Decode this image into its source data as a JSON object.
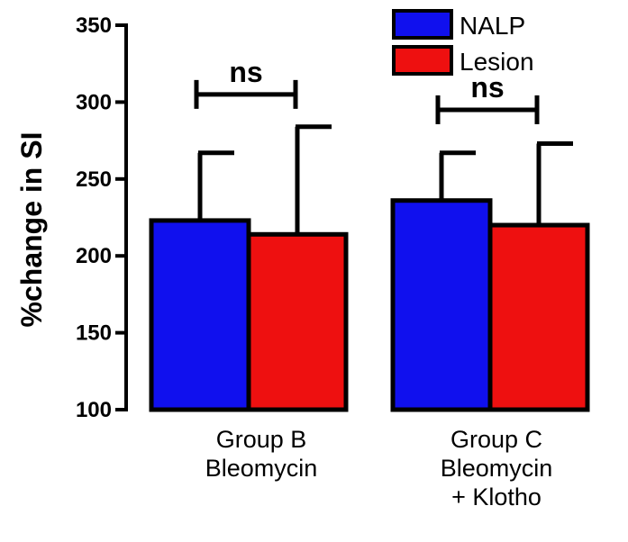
{
  "chart_data": {
    "type": "bar",
    "title": "",
    "xlabel": "",
    "ylabel": "%change in SI",
    "ylim": [
      100,
      350
    ],
    "yticks": [
      100,
      150,
      200,
      250,
      300,
      350
    ],
    "categories": [
      [
        "Group B",
        "Bleomycin"
      ],
      [
        "Group C",
        "Bleomycin",
        "+ Klotho"
      ]
    ],
    "series": [
      {
        "name": "NALP",
        "color": "#1010ee",
        "values": [
          223,
          236
        ],
        "errors": [
          44,
          31
        ]
      },
      {
        "name": "Lesion",
        "color": "#ee1010",
        "values": [
          214,
          220
        ],
        "errors": [
          70,
          53
        ]
      }
    ],
    "significance": [
      {
        "category": 0,
        "label": "ns",
        "y": 305
      },
      {
        "category": 1,
        "label": "ns",
        "y": 295
      }
    ],
    "legend_position": "top-right"
  }
}
